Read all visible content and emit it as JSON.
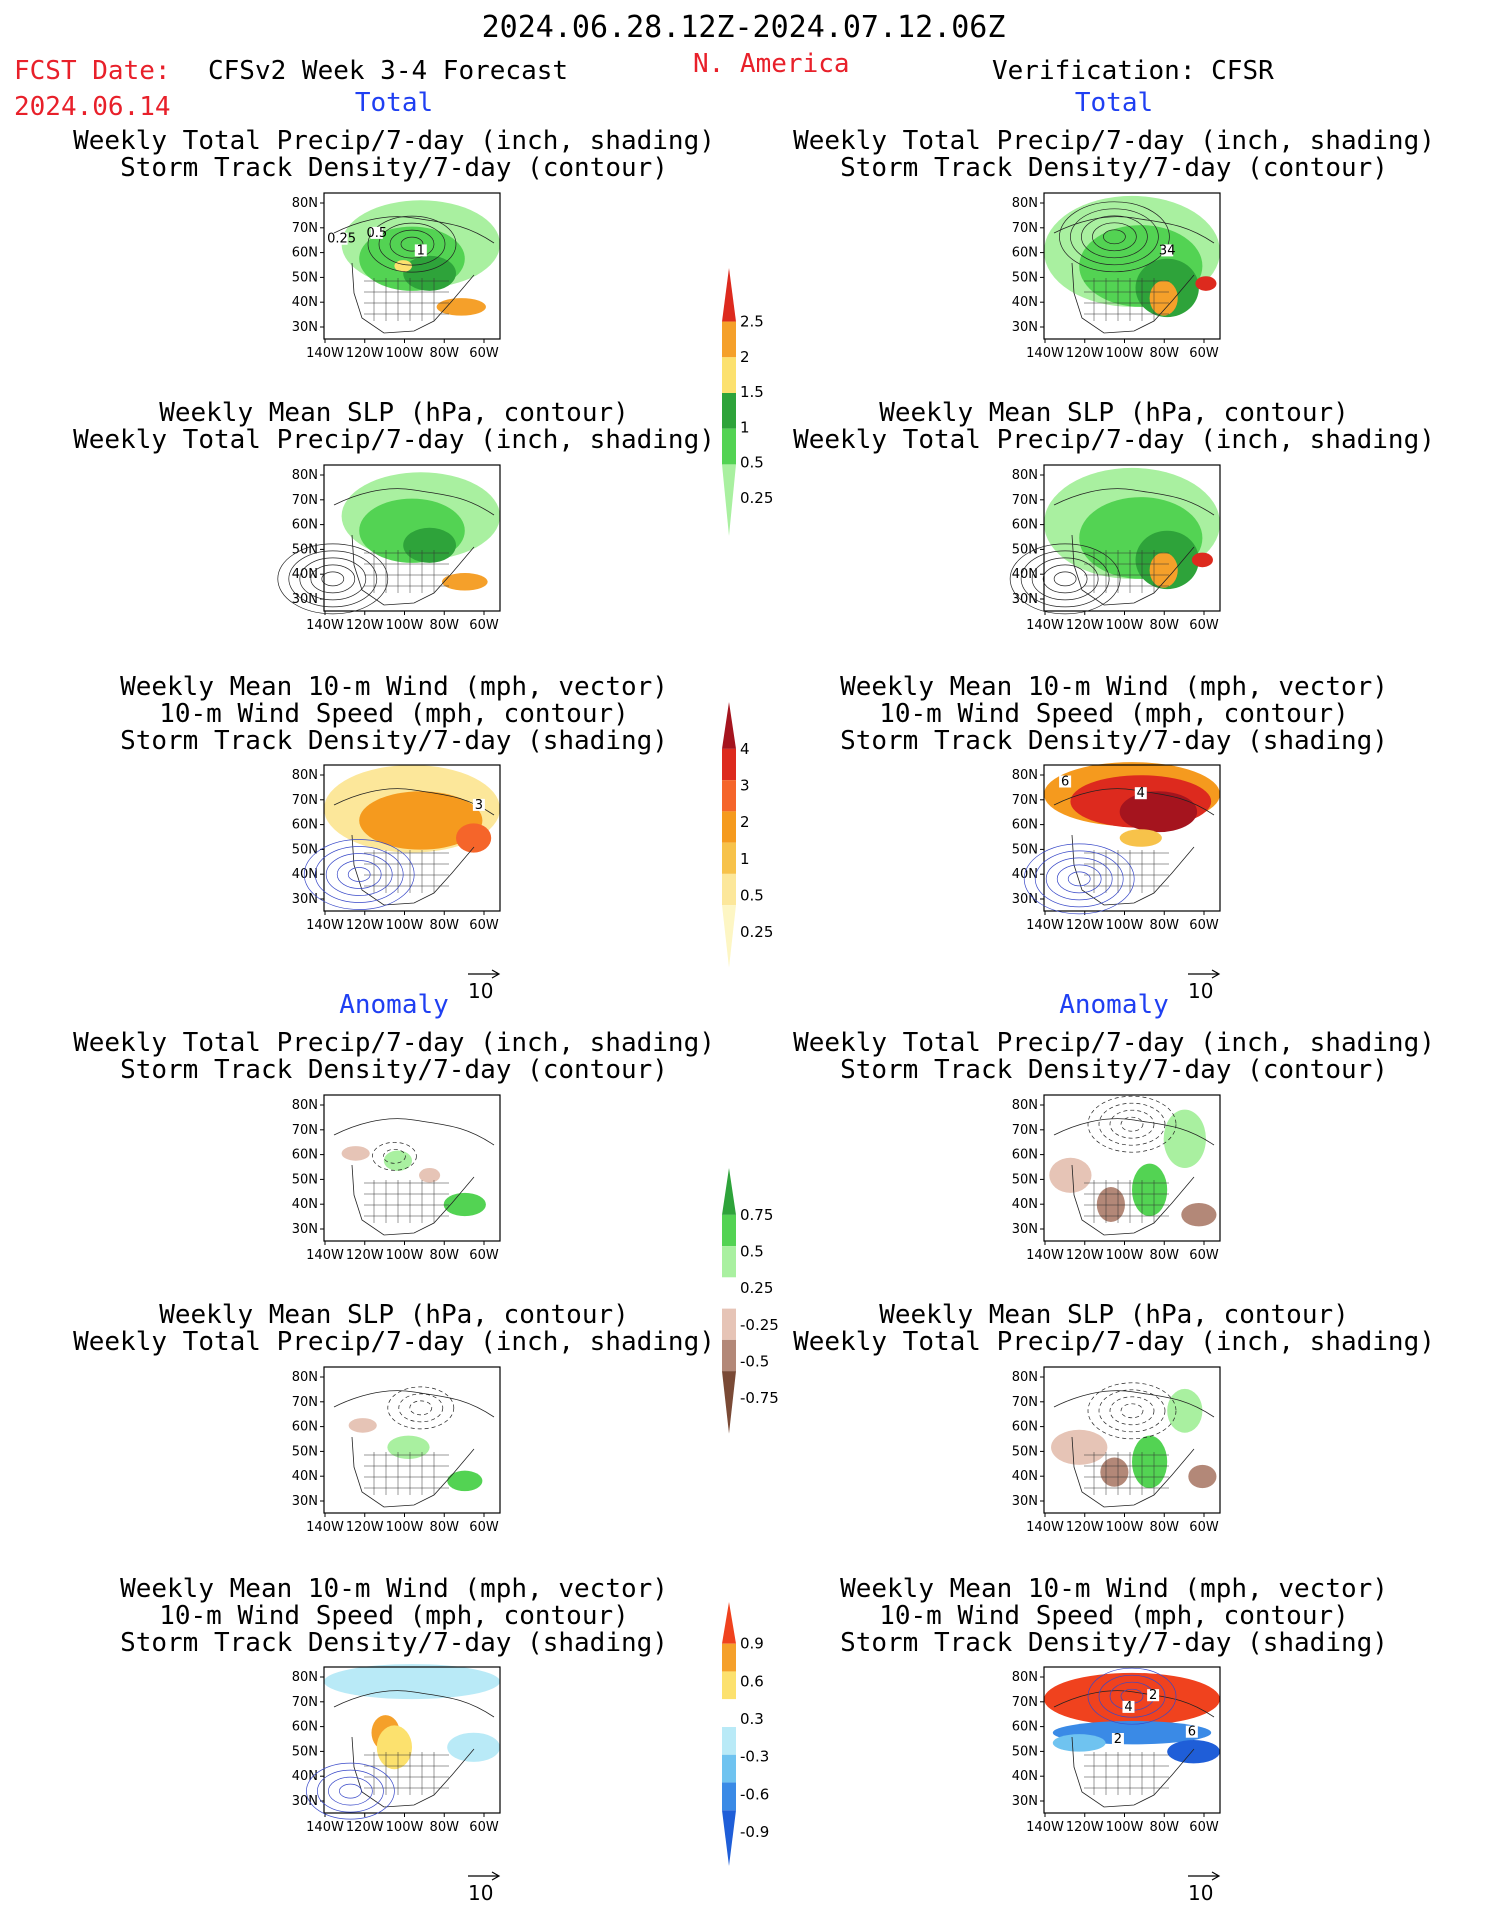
{
  "header": {
    "period": "2024.06.28.12Z-2024.07.12.06Z",
    "fcst_date_label": "FCST Date:",
    "fcst_date_value": "2024.06.14",
    "model": "CFSv2 Week 3-4 Forecast",
    "region": "N. America",
    "verification": "Verification: CFSR"
  },
  "sections": {
    "total_left": "Total",
    "total_right": "Total",
    "anomaly_left": "Anomaly",
    "anomaly_right": "Anomaly"
  },
  "titles": {
    "precip_storm": [
      "Weekly Total Precip/7-day (inch, shading)",
      "Storm Track Density/7-day (contour)"
    ],
    "slp_precip": [
      "Weekly Mean SLP (hPa, contour)",
      "Weekly Total Precip/7-day (inch, shading)"
    ],
    "wind_storm": [
      "Weekly Mean 10-m Wind (mph, vector)",
      "10-m Wind Speed (mph, contour)",
      "Storm Track Density/7-day (shading)"
    ]
  },
  "axes": {
    "lat_ticks": [
      "80N",
      "70N",
      "60N",
      "50N",
      "40N",
      "30N"
    ],
    "lon_ticks": [
      "140W",
      "120W",
      "100W",
      "80W",
      "60W"
    ]
  },
  "vector_reference": "10",
  "colorbars": [
    {
      "labels": [
        "2.5",
        "2",
        "1.5",
        "1",
        "0.5",
        "0.25"
      ],
      "colors": [
        "#dd2a1e",
        "#f5a02a",
        "#fce16e",
        "#2ea33a",
        "#53d353",
        "#a9f0a0"
      ]
    },
    {
      "labels": [
        "4",
        "3",
        "2",
        "1",
        "0.5",
        "0.25"
      ],
      "colors": [
        "#a5141e",
        "#dd2a1e",
        "#f5652a",
        "#f59a1e",
        "#f7c24a",
        "#fce79a",
        "#fdf6c4"
      ]
    },
    {
      "labels": [
        "0.75",
        "0.5",
        "0.25",
        "-0.25",
        "-0.5",
        "-0.75"
      ],
      "colors": [
        "#2ea33a",
        "#53d353",
        "#a9f0a0",
        "#ffffff",
        "#e6c4b6",
        "#b38878",
        "#7a4a36"
      ]
    },
    {
      "labels": [
        "0.9",
        "0.6",
        "0.3",
        "-0.3",
        "-0.6",
        "-0.9"
      ],
      "colors": [
        "#f0421e",
        "#f5a02a",
        "#fce16e",
        "#ffffff",
        "#b9eaf7",
        "#6fc3f0",
        "#3a8ae6",
        "#1f5ed8"
      ]
    }
  ],
  "contour_labels": {
    "fcst_precip_total": [
      "0.25",
      "0.5",
      "1"
    ],
    "verif_precip_total": [
      "34"
    ],
    "fcst_wind_total": [
      "3"
    ],
    "verif_wind_total": [
      "6",
      "4"
    ],
    "verif_wind_anom": [
      "4",
      "2",
      "2",
      "6"
    ]
  },
  "colors": {
    "accent_red": "#e8202a",
    "accent_blue": "#1f3ff2"
  }
}
